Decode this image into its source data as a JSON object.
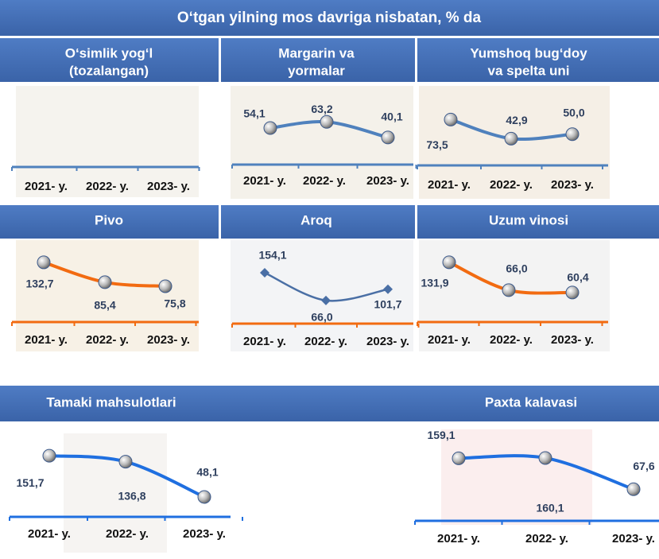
{
  "title": "O‘tgan yilning mos davriga nisbatan, % da",
  "chart_data": [
    {
      "type": "line",
      "title": [
        "O‘simlik yog‘l",
        "(tozalangan)"
      ],
      "categories": [
        "2021- y.",
        "2022- y.",
        "2023- y."
      ],
      "axis_color": "#4f81bd"
    },
    {
      "type": "line",
      "title": [
        "Margarin va",
        "yormalar"
      ],
      "categories": [
        "2021- y.",
        "2022- y.",
        "2023- y."
      ],
      "values": [
        54.1,
        63.2,
        40.1
      ],
      "value_labels": [
        "54,1",
        "63,2",
        "40,1"
      ],
      "color": "#4f81bd",
      "marker": "sphere",
      "axis_color": "#4f81bd",
      "ylim": [
        0,
        120
      ]
    },
    {
      "type": "line",
      "title": [
        "Yumshoq bug‘doy",
        "va spelta uni"
      ],
      "categories": [
        "2021- y.",
        "2022- y.",
        "2023- y."
      ],
      "values": [
        73.5,
        42.9,
        50.0
      ],
      "value_labels": [
        "73,5",
        "42,9",
        "50,0"
      ],
      "color": "#4f81bd",
      "marker": "sphere",
      "axis_color": "#4f81bd",
      "ylim": [
        0,
        130
      ]
    },
    {
      "type": "line",
      "title": [
        "Pivo"
      ],
      "categories": [
        "2021- y.",
        "2022- y.",
        "2023- y."
      ],
      "values": [
        132.7,
        85.4,
        75.8
      ],
      "value_labels": [
        "132,7",
        "85,4",
        "75,8"
      ],
      "color": "#f26b11",
      "marker": "sphere",
      "axis_color": "#f26b11",
      "ylim": [
        0,
        250
      ]
    },
    {
      "type": "line",
      "title": [
        "Aroq"
      ],
      "categories": [
        "2021- y.",
        "2022- y.",
        "2023- y."
      ],
      "values": [
        154.1,
        66.0,
        101.7
      ],
      "value_labels": [
        "154,1",
        "66,0",
        "101,7"
      ],
      "color": "#4a6fa5",
      "marker": "diamond",
      "axis_color": "#f26b11",
      "ylim": [
        0,
        250
      ]
    },
    {
      "type": "line",
      "title": [
        "Uzum vinosi"
      ],
      "categories": [
        "2021- y.",
        "2022- y.",
        "2023- y."
      ],
      "values": [
        131.9,
        66.0,
        60.4
      ],
      "value_labels": [
        "131,9",
        "66,0",
        "60,4"
      ],
      "color": "#f26b11",
      "marker": "sphere",
      "axis_color": "#f26b11",
      "ylim": [
        0,
        250
      ]
    },
    {
      "type": "line",
      "title": [
        "Tamaki mahsulotlari"
      ],
      "categories": [
        "2021- y.",
        "2022- y.",
        "2023- y."
      ],
      "values": [
        151.7,
        136.8,
        48.1
      ],
      "value_labels": [
        "151,7",
        "136,8",
        "48,1"
      ],
      "color": "#1f6fe0",
      "marker": "sphere",
      "axis_color": "#1f6fe0",
      "ylim": [
        0,
        200
      ]
    },
    {
      "type": "line",
      "title": [
        "Paxta kalavasi"
      ],
      "categories": [
        "2021- y.",
        "2022- y.",
        "2023- y."
      ],
      "values": [
        159.1,
        160.1,
        67.6
      ],
      "value_labels": [
        "159,1",
        "160,1",
        "67,6"
      ],
      "color": "#1f6fe0",
      "marker": "sphere",
      "axis_color": "#1f6fe0",
      "ylim": [
        0,
        200
      ]
    }
  ]
}
